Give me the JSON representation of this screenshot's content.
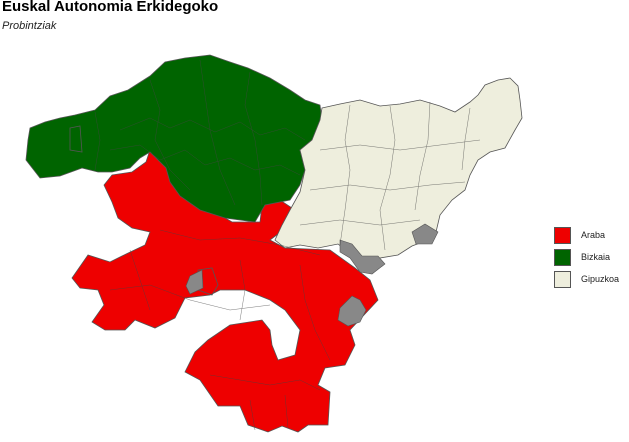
{
  "title": "Euskal Autonomia Erkidegoko",
  "subtitle": "Probintziak",
  "colors": {
    "araba": "#ee0000",
    "bizkaia": "#006400",
    "gipuzkoa": "#eeeedd",
    "enclave": "#888888",
    "border": "#555555"
  },
  "legend": {
    "items": [
      {
        "label": "Araba",
        "color": "#ee0000"
      },
      {
        "label": "Bizkaia",
        "color": "#006400"
      },
      {
        "label": "Gipuzkoa",
        "color": "#eeeedd"
      }
    ]
  }
}
